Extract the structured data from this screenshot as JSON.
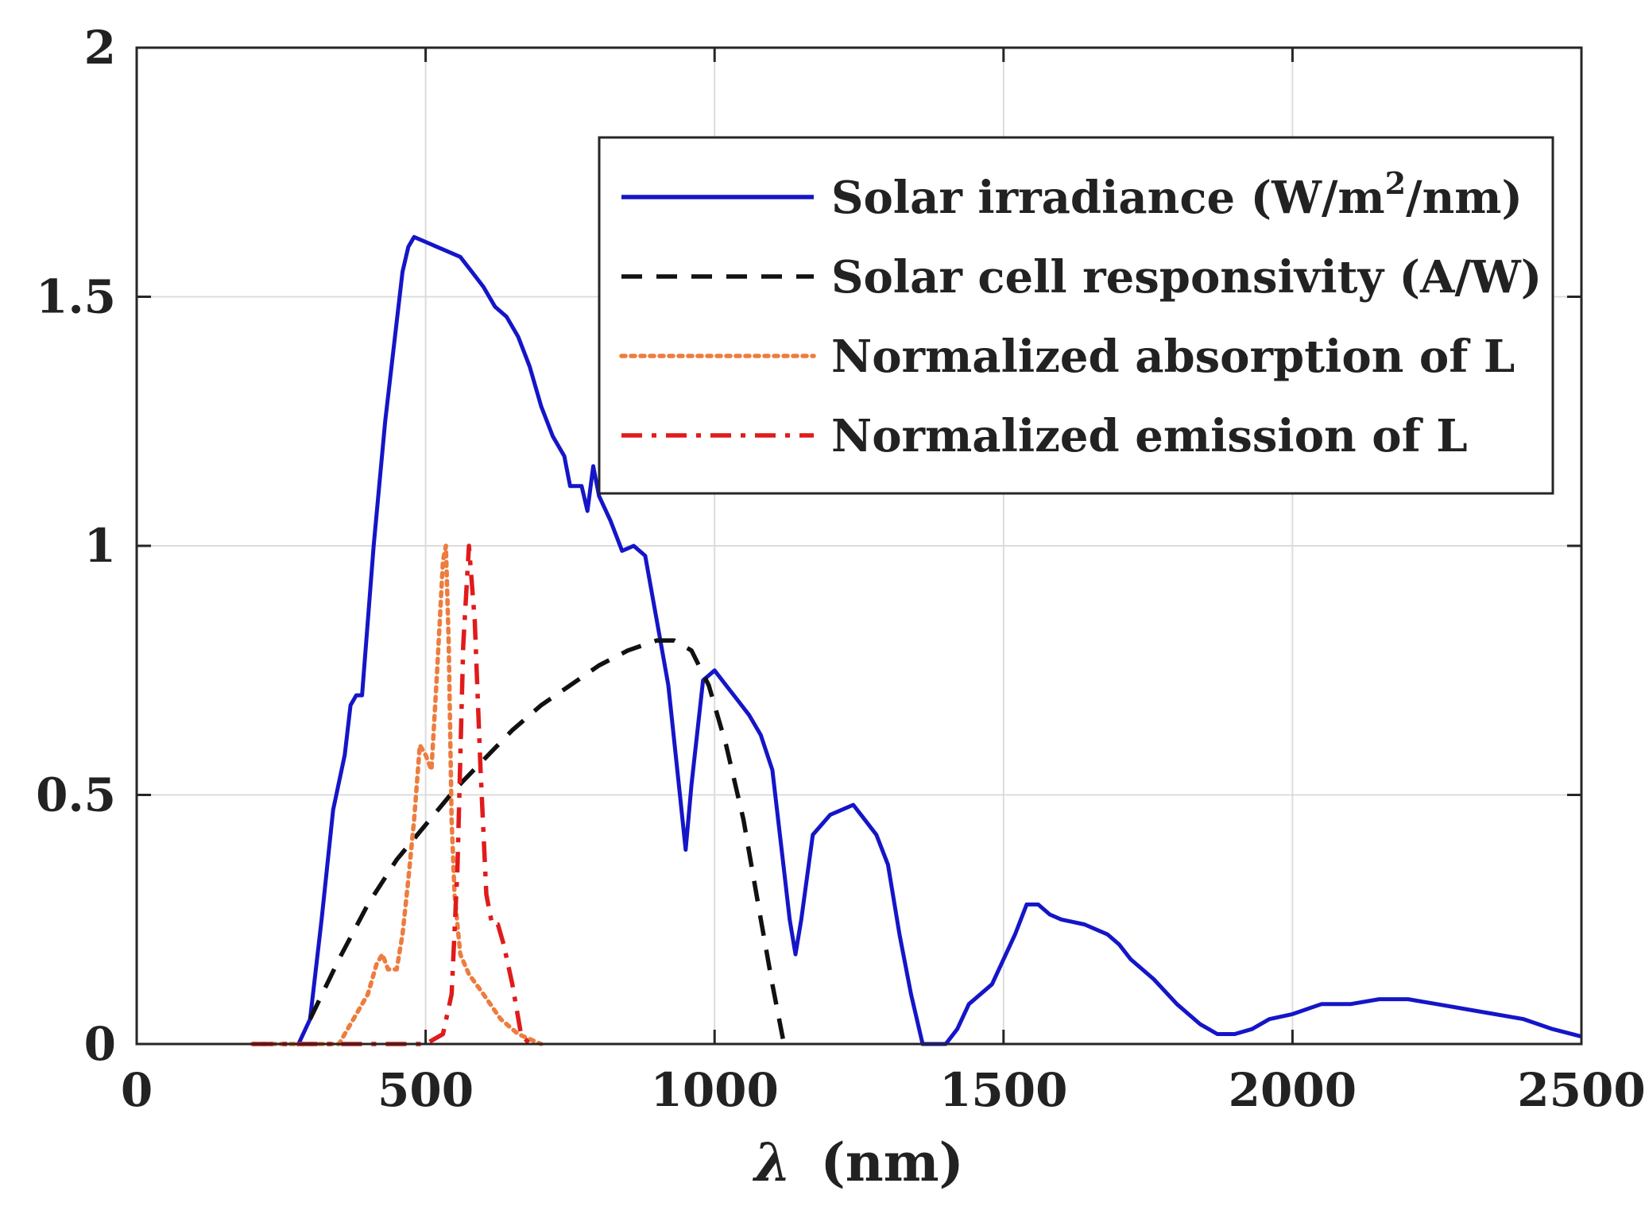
{
  "chart_data": {
    "type": "line",
    "title": "",
    "xlabel": "λ (nm)",
    "xlabel_symbol": "λ",
    "xlabel_unit": "(nm)",
    "ylabel": "",
    "xlim": [
      0,
      2500
    ],
    "ylim": [
      0,
      2
    ],
    "xticks": [
      0,
      500,
      1000,
      1500,
      2000,
      2500
    ],
    "yticks": [
      0,
      0.5,
      1,
      1.5,
      2
    ],
    "xtick_labels": [
      "0",
      "500",
      "1000",
      "1500",
      "2000",
      "2500"
    ],
    "ytick_labels": [
      "0",
      "0.5",
      "1",
      "1.5",
      "2"
    ],
    "grid": true,
    "legend_position": "top-right",
    "series": [
      {
        "name": "Solar irradiance (W/m2/nm)",
        "legend_label_main": "Solar irradiance (W/m",
        "legend_label_sup": "2",
        "legend_label_end": "/nm)",
        "color": "#1515c8",
        "style": "solid",
        "x": [
          280,
          300,
          320,
          340,
          360,
          370,
          380,
          390,
          410,
          430,
          450,
          460,
          470,
          480,
          500,
          520,
          540,
          560,
          580,
          600,
          620,
          640,
          660,
          680,
          700,
          720,
          740,
          750,
          770,
          780,
          790,
          800,
          820,
          840,
          860,
          880,
          900,
          920,
          940,
          950,
          960,
          980,
          1000,
          1020,
          1040,
          1060,
          1080,
          1100,
          1120,
          1130,
          1140,
          1150,
          1170,
          1200,
          1240,
          1260,
          1280,
          1300,
          1320,
          1340,
          1360,
          1380,
          1400,
          1420,
          1440,
          1480,
          1520,
          1540,
          1560,
          1580,
          1600,
          1640,
          1680,
          1700,
          1720,
          1760,
          1800,
          1840,
          1870,
          1900,
          1930,
          1960,
          2000,
          2050,
          2100,
          2150,
          2200,
          2250,
          2300,
          2350,
          2400,
          2450,
          2500
        ],
        "y": [
          0,
          0.05,
          0.25,
          0.47,
          0.58,
          0.68,
          0.7,
          0.7,
          1.0,
          1.25,
          1.45,
          1.55,
          1.6,
          1.62,
          1.61,
          1.6,
          1.59,
          1.58,
          1.55,
          1.52,
          1.48,
          1.46,
          1.42,
          1.36,
          1.28,
          1.22,
          1.18,
          1.12,
          1.12,
          1.07,
          1.16,
          1.1,
          1.05,
          0.99,
          1.0,
          0.98,
          0.85,
          0.72,
          0.5,
          0.39,
          0.52,
          0.73,
          0.75,
          0.72,
          0.69,
          0.66,
          0.62,
          0.55,
          0.35,
          0.25,
          0.18,
          0.25,
          0.42,
          0.46,
          0.48,
          0.45,
          0.42,
          0.36,
          0.22,
          0.1,
          0.0,
          0.0,
          0.0,
          0.03,
          0.08,
          0.12,
          0.22,
          0.28,
          0.28,
          0.26,
          0.25,
          0.24,
          0.22,
          0.2,
          0.17,
          0.13,
          0.08,
          0.04,
          0.02,
          0.02,
          0.03,
          0.05,
          0.06,
          0.08,
          0.08,
          0.09,
          0.09,
          0.08,
          0.07,
          0.06,
          0.05,
          0.03,
          0.015
        ]
      },
      {
        "name": "Solar cell responsivity (A/W)",
        "color": "#111111",
        "style": "dashed",
        "x": [
          300,
          350,
          400,
          450,
          500,
          550,
          600,
          650,
          700,
          750,
          800,
          850,
          900,
          930,
          960,
          990,
          1020,
          1050,
          1080,
          1100,
          1120
        ],
        "y": [
          0.05,
          0.17,
          0.28,
          0.37,
          0.44,
          0.51,
          0.57,
          0.63,
          0.68,
          0.72,
          0.76,
          0.79,
          0.81,
          0.81,
          0.79,
          0.72,
          0.6,
          0.45,
          0.25,
          0.12,
          0.0
        ]
      },
      {
        "name": "Normalized absorption of L",
        "color": "#ed7c3e",
        "style": "dotted",
        "x": [
          200,
          350,
          375,
          400,
          415,
          425,
          435,
          450,
          460,
          470,
          480,
          490,
          500,
          510,
          520,
          530,
          535,
          540,
          545,
          550,
          560,
          575,
          600,
          630,
          660,
          700
        ],
        "y": [
          0,
          0,
          0.05,
          0.1,
          0.16,
          0.18,
          0.15,
          0.15,
          0.22,
          0.33,
          0.45,
          0.6,
          0.58,
          0.55,
          0.75,
          0.97,
          1.0,
          0.8,
          0.45,
          0.3,
          0.18,
          0.14,
          0.1,
          0.05,
          0.02,
          0
        ]
      },
      {
        "name": "Normalized emission of L",
        "color": "#e01b1b",
        "style": "dashdot",
        "x": [
          200,
          500,
          530,
          545,
          555,
          565,
          575,
          585,
          595,
          605,
          615,
          625,
          635,
          650,
          665,
          680
        ],
        "y": [
          0,
          0,
          0.02,
          0.1,
          0.35,
          0.8,
          1.0,
          0.85,
          0.55,
          0.3,
          0.24,
          0.24,
          0.2,
          0.12,
          0.02,
          0
        ]
      }
    ]
  }
}
